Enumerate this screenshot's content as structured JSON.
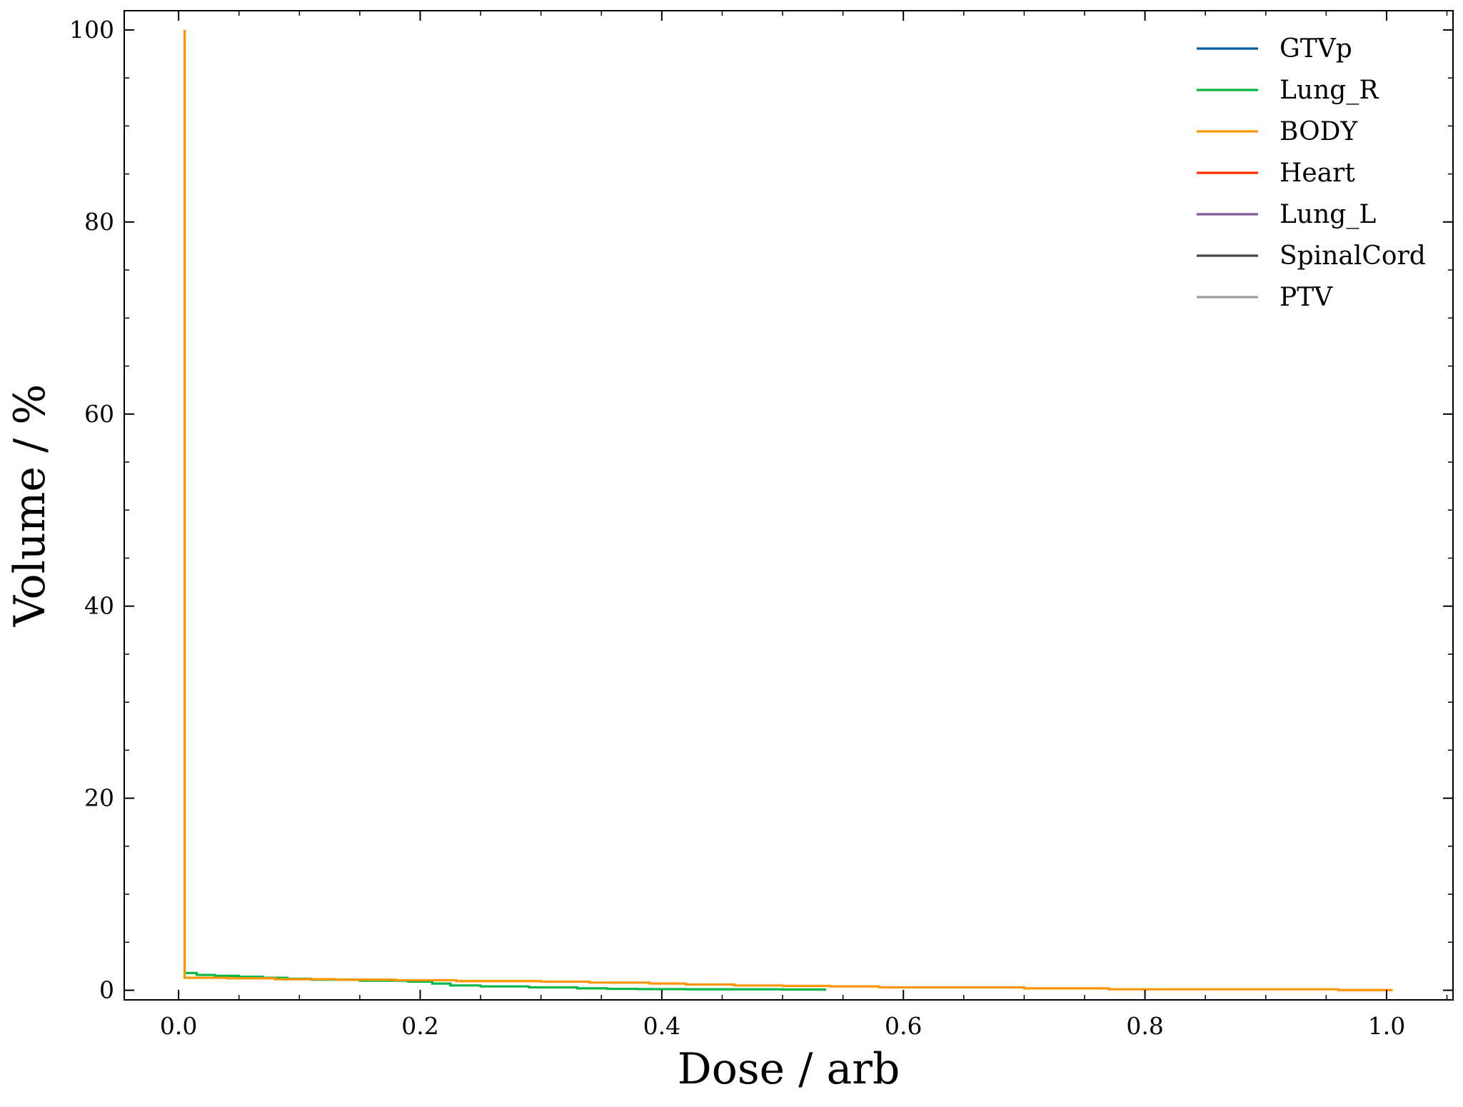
{
  "chart_data": {
    "type": "line",
    "title": "",
    "xlabel": "Dose / arb",
    "ylabel": "Volume / %",
    "xlim": [
      -0.045,
      1.055
    ],
    "ylim": [
      -1,
      102
    ],
    "xticks": [
      0.0,
      0.2,
      0.4,
      0.6,
      0.8,
      1.0
    ],
    "xtick_labels": [
      "0.0",
      "0.2",
      "0.4",
      "0.6",
      "0.8",
      "1.0"
    ],
    "yticks": [
      0,
      20,
      40,
      60,
      80,
      100
    ],
    "ytick_labels": [
      "0",
      "20",
      "40",
      "60",
      "80",
      "100"
    ],
    "grid": false,
    "legend_position": "top-right",
    "series": [
      {
        "name": "GTVp",
        "color": "#0C5DA5",
        "x": [],
        "y": []
      },
      {
        "name": "Lung_R",
        "color": "#00B945",
        "x": [
          0.005,
          0.005,
          0.015,
          0.015,
          0.03,
          0.03,
          0.05,
          0.05,
          0.07,
          0.07,
          0.09,
          0.09,
          0.11,
          0.11,
          0.15,
          0.15,
          0.19,
          0.19,
          0.21,
          0.21,
          0.225,
          0.225,
          0.25,
          0.25,
          0.29,
          0.29,
          0.33,
          0.33,
          0.355,
          0.355,
          0.38,
          0.38,
          0.42,
          0.42,
          0.5,
          0.5,
          0.536
        ],
        "y": [
          100,
          1.8,
          1.8,
          1.6,
          1.6,
          1.5,
          1.5,
          1.4,
          1.4,
          1.3,
          1.3,
          1.2,
          1.2,
          1.1,
          1.1,
          1.0,
          1.0,
          0.9,
          0.9,
          0.7,
          0.7,
          0.5,
          0.5,
          0.4,
          0.4,
          0.3,
          0.3,
          0.2,
          0.2,
          0.15,
          0.15,
          0.12,
          0.12,
          0.1,
          0.1,
          0.08,
          0.08
        ]
      },
      {
        "name": "BODY",
        "color": "#FF9500",
        "x": [
          0.005,
          0.005,
          0.04,
          0.04,
          0.08,
          0.08,
          0.13,
          0.13,
          0.18,
          0.18,
          0.23,
          0.23,
          0.3,
          0.3,
          0.34,
          0.34,
          0.39,
          0.39,
          0.42,
          0.42,
          0.46,
          0.46,
          0.5,
          0.5,
          0.54,
          0.54,
          0.58,
          0.58,
          0.7,
          0.7,
          0.77,
          0.77,
          0.96,
          0.96,
          1.005
        ],
        "y": [
          100,
          1.3,
          1.3,
          1.25,
          1.25,
          1.15,
          1.15,
          1.1,
          1.1,
          1.05,
          1.05,
          0.95,
          0.95,
          0.9,
          0.9,
          0.8,
          0.8,
          0.7,
          0.7,
          0.6,
          0.6,
          0.5,
          0.5,
          0.45,
          0.45,
          0.4,
          0.4,
          0.3,
          0.3,
          0.2,
          0.2,
          0.1,
          0.1,
          0.02,
          0.02
        ]
      },
      {
        "name": "Heart",
        "color": "#FF2C00",
        "x": [],
        "y": []
      },
      {
        "name": "Lung_L",
        "color": "#845B97",
        "x": [],
        "y": []
      },
      {
        "name": "SpinalCord",
        "color": "#474747",
        "x": [],
        "y": []
      },
      {
        "name": "PTV",
        "color": "#9E9E9E",
        "x": [],
        "y": []
      }
    ]
  }
}
